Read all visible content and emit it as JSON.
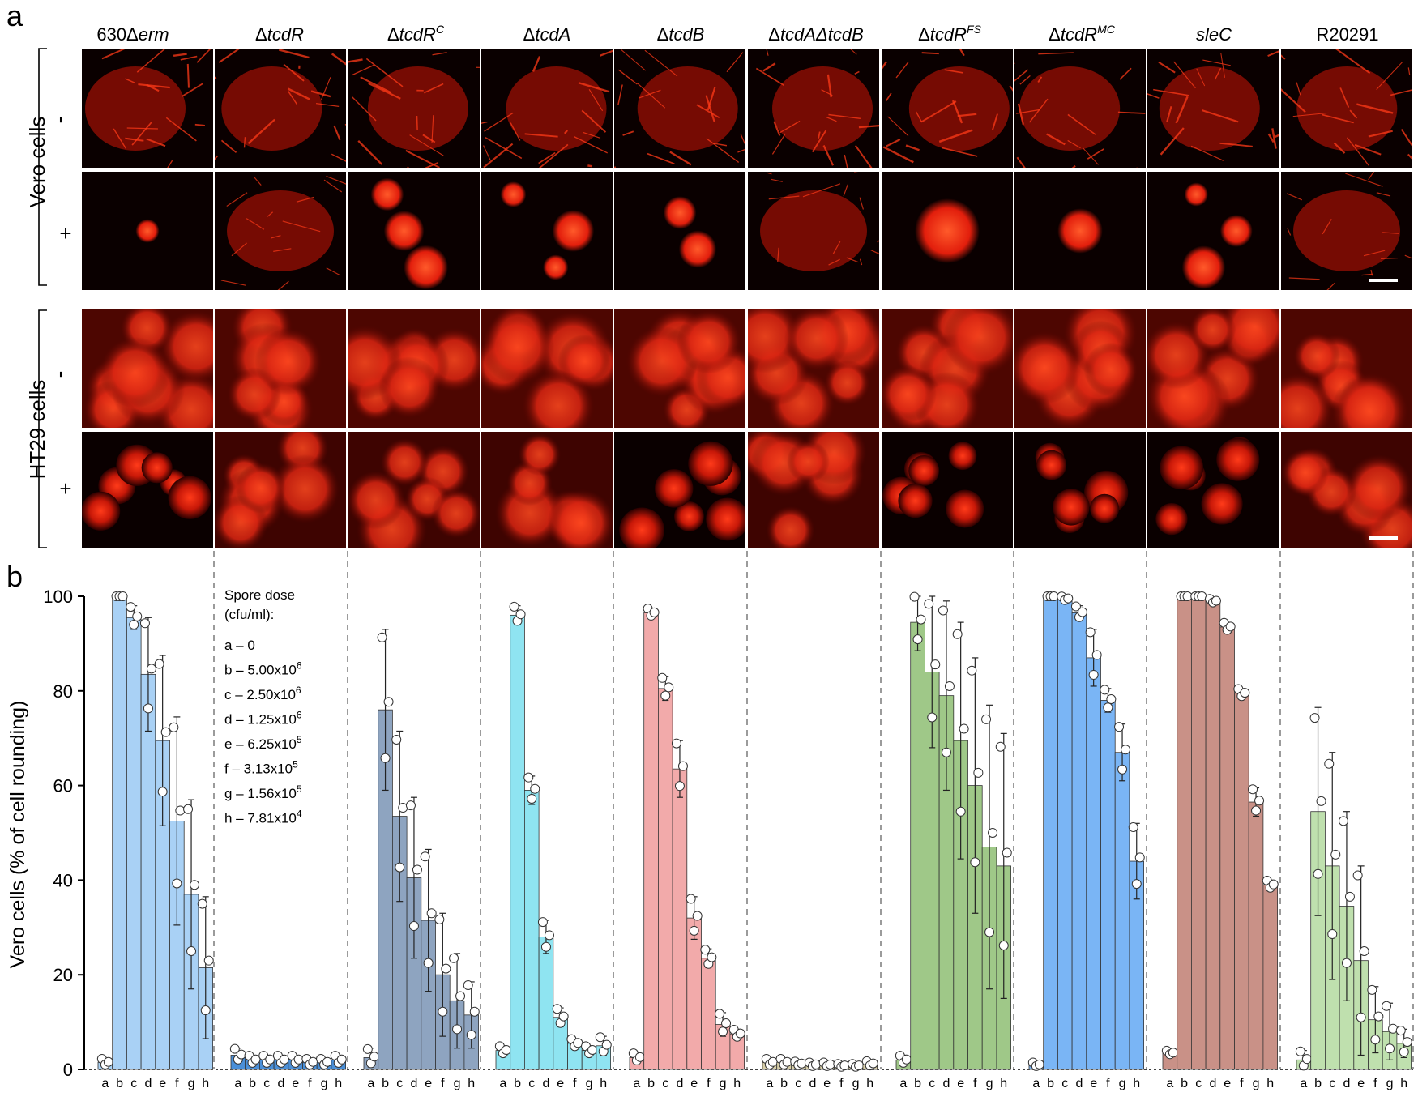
{
  "panels": {
    "a_letter": "a",
    "b_letter": "b"
  },
  "strains": [
    {
      "pre": "630Δ",
      "ital": "erm",
      "sup": "",
      "post": ""
    },
    {
      "pre": "Δ",
      "ital": "tcdR",
      "sup": "",
      "post": ""
    },
    {
      "pre": "Δ",
      "ital": "tcdR",
      "sup": "C",
      "post": ""
    },
    {
      "pre": "Δ",
      "ital": "tcdA",
      "sup": "",
      "post": ""
    },
    {
      "pre": "Δ",
      "ital": "tcdB",
      "sup": "",
      "post": ""
    },
    {
      "pre": "Δ",
      "ital": "tcdAΔtcdB",
      "sup": "",
      "post": ""
    },
    {
      "pre": "Δ",
      "ital": "tcdR",
      "sup": "FS",
      "post": ""
    },
    {
      "pre": "Δ",
      "ital": "tcdR",
      "sup": "MC",
      "post": ""
    },
    {
      "pre": "",
      "ital": "sleC",
      "sup": "",
      "post": ""
    },
    {
      "pre": "R20291",
      "ital": "",
      "sup": "",
      "post": ""
    }
  ],
  "rows": {
    "vero_label": "Vero cells",
    "ht29_label": "HT29 cells",
    "minus": "-",
    "plus": "+"
  },
  "legend": {
    "title1": "Spore dose",
    "title2": "(cfu/ml):",
    "items": [
      {
        "letter": "a",
        "dose": "0",
        "exp": ""
      },
      {
        "letter": "b",
        "dose": "5.00x10",
        "exp": "6"
      },
      {
        "letter": "c",
        "dose": "2.50x10",
        "exp": "6"
      },
      {
        "letter": "d",
        "dose": "1.25x10",
        "exp": "6"
      },
      {
        "letter": "e",
        "dose": "6.25x10",
        "exp": "5"
      },
      {
        "letter": "f",
        "dose": "3.13x10",
        "exp": "5"
      },
      {
        "letter": "g",
        "dose": "1.56x10",
        "exp": "5"
      },
      {
        "letter": "h",
        "dose": "7.81x10",
        "exp": "4"
      }
    ]
  },
  "chart_data": {
    "type": "bar",
    "ylabel": "Vero cells (% of cell rounding)",
    "ylim": [
      0,
      100
    ],
    "yticks": [
      0,
      20,
      40,
      60,
      80,
      100
    ],
    "categories": [
      "a",
      "b",
      "c",
      "d",
      "e",
      "f",
      "g",
      "h"
    ],
    "series": [
      {
        "name": "630Δerm",
        "color": "#a9d1f5",
        "values": [
          1.5,
          100,
          95.5,
          83.5,
          69.5,
          52.5,
          37,
          21.5
        ],
        "err": [
          0.8,
          0,
          2.5,
          12,
          18,
          22,
          20,
          15
        ]
      },
      {
        "name": "ΔtcdR",
        "color": "#4a8fd8",
        "values": [
          3,
          2,
          2,
          2,
          2,
          1.5,
          1.5,
          2
        ],
        "err": [
          1.5,
          1,
          1,
          1,
          1,
          0.8,
          0.8,
          1
        ]
      },
      {
        "name": "ΔtcdRC",
        "color": "#8ea4c0",
        "values": [
          2.5,
          76,
          53.5,
          40.5,
          31.5,
          20,
          14.5,
          11.5
        ],
        "err": [
          2,
          17,
          18,
          17,
          15,
          13,
          10,
          7
        ]
      },
      {
        "name": "ΔtcdA",
        "color": "#8fe4f1",
        "values": [
          4,
          96,
          59,
          28,
          11,
          5.5,
          4,
          5
        ],
        "err": [
          1,
          2,
          3,
          3.5,
          2,
          1,
          1,
          2
        ]
      },
      {
        "name": "ΔtcdB",
        "color": "#f2aaaa",
        "values": [
          2.5,
          96.5,
          80.5,
          63.5,
          32,
          23.5,
          9.5,
          7.5
        ],
        "err": [
          1,
          1,
          2.5,
          6,
          4.5,
          2,
          2.5,
          1
        ]
      },
      {
        "name": "ΔtcdAΔtcdB",
        "color": "#d8cfa8",
        "values": [
          1.5,
          1.5,
          1.2,
          1.0,
          1.0,
          0.8,
          0.8,
          1.2
        ],
        "err": [
          0.8,
          0.8,
          0.5,
          0.5,
          0.5,
          0.4,
          0.4,
          0.6
        ]
      },
      {
        "name": "ΔtcdRFS",
        "color": "#9fc888",
        "values": [
          2,
          94.5,
          84,
          79,
          69.5,
          60,
          47,
          43
        ],
        "err": [
          1,
          6,
          16,
          20,
          25,
          27,
          30,
          28
        ]
      },
      {
        "name": "ΔtcdRMC",
        "color": "#7ab5f5",
        "values": [
          1,
          100,
          99.5,
          96.5,
          87,
          78,
          67,
          44
        ],
        "err": [
          0.5,
          0,
          0.5,
          1.5,
          6,
          2.5,
          6,
          8
        ]
      },
      {
        "name": "sleC",
        "color": "#c99187",
        "values": [
          3.5,
          100,
          100,
          99,
          93.5,
          79.5,
          56.5,
          39
        ],
        "err": [
          0.5,
          0,
          0,
          0.5,
          1,
          1,
          3,
          1
        ]
      },
      {
        "name": "R20291",
        "color": "#bfe0ae",
        "values": [
          2,
          54.5,
          43,
          34.5,
          23,
          10.5,
          8,
          5.5
        ],
        "err": [
          2,
          22,
          24,
          20,
          20,
          7,
          6,
          3
        ]
      }
    ]
  }
}
